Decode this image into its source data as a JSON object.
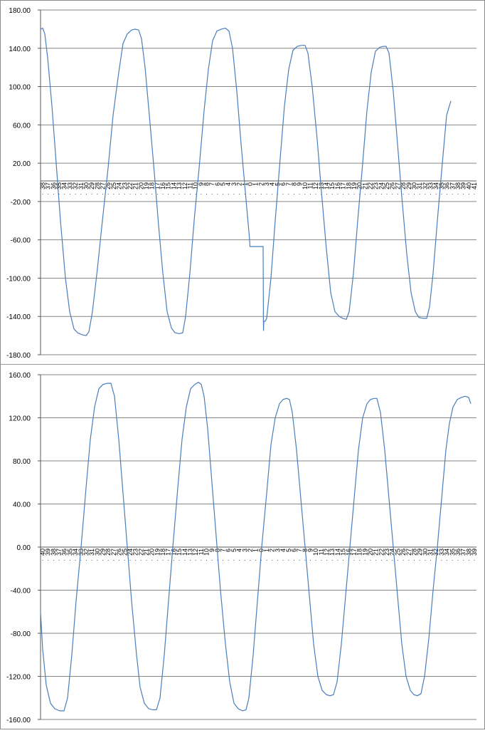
{
  "colors": {
    "series": "#4a7ebb",
    "grid": "#868686",
    "axis": "#595959",
    "text": "#000000"
  },
  "chart_data": [
    {
      "type": "line",
      "title": "",
      "xlabel": "",
      "ylabel": "",
      "ylim": [
        -180,
        180
      ],
      "y_ticks": [
        "180.00",
        "140.00",
        "100.00",
        "60.00",
        "20.00",
        "-20.00",
        "-60.00",
        "-100.00",
        "-140.00",
        "-180.00"
      ],
      "grid": true,
      "legend": "none",
      "x_tick_labels": [
        "38",
        "37",
        "36",
        "35",
        "34",
        "33",
        "32",
        "31",
        "30",
        "29",
        "28",
        "27",
        "26",
        "25",
        "24",
        "23",
        "22",
        "21",
        "20",
        "19",
        "18",
        "17",
        "16",
        "15",
        "14",
        "13",
        "12",
        "11",
        "10",
        "9",
        "8",
        "7",
        "6",
        "5",
        "4",
        "3",
        "2",
        "1",
        "0",
        "1",
        "2",
        "3",
        "4",
        "5",
        "6",
        "7",
        "8",
        "9",
        "10",
        "11",
        "12",
        "13",
        "14",
        "15",
        "16",
        "17",
        "18",
        "19",
        "20",
        "21",
        "22",
        "23",
        "24",
        "25",
        "26",
        "27",
        "28",
        "29",
        "30",
        "31",
        "32",
        "33",
        "34",
        "35",
        "36",
        "37",
        "38",
        "39",
        "40",
        "41"
      ],
      "series": [
        {
          "values": [
            [
              0,
              160
            ],
            [
              3,
              161
            ],
            [
              6,
              155
            ],
            [
              10,
              130
            ],
            [
              16,
              80
            ],
            [
              22,
              20
            ],
            [
              28,
              -40
            ],
            [
              35,
              -100
            ],
            [
              41,
              -135
            ],
            [
              47,
              -153
            ],
            [
              52,
              -157
            ],
            [
              58,
              -159
            ],
            [
              64,
              -160
            ],
            [
              68,
              -156
            ],
            [
              73,
              -135
            ],
            [
              80,
              -90
            ],
            [
              87,
              -40
            ],
            [
              95,
              15
            ],
            [
              102,
              70
            ],
            [
              110,
              115
            ],
            [
              116,
              145
            ],
            [
              122,
              155
            ],
            [
              128,
              159
            ],
            [
              133,
              160
            ],
            [
              138,
              159
            ],
            [
              142,
              150
            ],
            [
              147,
              120
            ],
            [
              153,
              70
            ],
            [
              160,
              10
            ],
            [
              166,
              -45
            ],
            [
              172,
              -95
            ],
            [
              178,
              -135
            ],
            [
              184,
              -152
            ],
            [
              189,
              -157
            ],
            [
              195,
              -158
            ],
            [
              200,
              -157
            ],
            [
              204,
              -140
            ],
            [
              210,
              -95
            ],
            [
              216,
              -40
            ],
            [
              223,
              15
            ],
            [
              230,
              75
            ],
            [
              236,
              118
            ],
            [
              242,
              148
            ],
            [
              248,
              158
            ],
            [
              254,
              160
            ],
            [
              260,
              161
            ],
            [
              265,
              158
            ],
            [
              270,
              140
            ],
            [
              276,
              95
            ],
            [
              282,
              40
            ],
            [
              288,
              -10
            ],
            [
              294,
              -60
            ],
            [
              294.5,
              -67
            ],
            [
              313,
              -67
            ],
            [
              313.5,
              -155
            ],
            [
              314,
              -145
            ],
            [
              316,
              -145
            ],
            [
              318,
              -142
            ],
            [
              324,
              -100
            ],
            [
              330,
              -40
            ],
            [
              337,
              25
            ],
            [
              343,
              80
            ],
            [
              349,
              118
            ],
            [
              355,
              138
            ],
            [
              361,
              142
            ],
            [
              367,
              143
            ],
            [
              372,
              143
            ],
            [
              376,
              135
            ],
            [
              382,
              100
            ],
            [
              389,
              45
            ],
            [
              395,
              -10
            ],
            [
              402,
              -70
            ],
            [
              408,
              -115
            ],
            [
              414,
              -135
            ],
            [
              420,
              -140
            ],
            [
              425,
              -142
            ],
            [
              430,
              -143
            ],
            [
              434,
              -135
            ],
            [
              440,
              -95
            ],
            [
              446,
              -40
            ],
            [
              453,
              20
            ],
            [
              459,
              75
            ],
            [
              465,
              115
            ],
            [
              471,
              137
            ],
            [
              477,
              141
            ],
            [
              482,
              142
            ],
            [
              486,
              142
            ],
            [
              490,
              135
            ],
            [
              496,
              95
            ],
            [
              502,
              40
            ],
            [
              508,
              -15
            ],
            [
              515,
              -75
            ],
            [
              521,
              -115
            ],
            [
              527,
              -135
            ],
            [
              532,
              -141
            ],
            [
              538,
              -142
            ],
            [
              543,
              -142
            ],
            [
              547,
              -130
            ],
            [
              552,
              -95
            ],
            [
              558,
              -40
            ],
            [
              565,
              20
            ],
            [
              571,
              70
            ],
            [
              577,
              85
            ]
          ]
        }
      ]
    },
    {
      "type": "line",
      "title": "",
      "xlabel": "",
      "ylabel": "",
      "ylim": [
        -160,
        160
      ],
      "y_ticks": [
        "160.00",
        "120.00",
        "80.00",
        "40.00",
        "0.00",
        "-40.00",
        "-80.00",
        "-120.00",
        "-160.00"
      ],
      "grid": true,
      "legend": "none",
      "x_tick_labels": [
        "40",
        "39",
        "38",
        "37",
        "36",
        "35",
        "34",
        "33",
        "32",
        "31",
        "30",
        "29",
        "28",
        "27",
        "26",
        "25",
        "24",
        "23",
        "22",
        "21",
        "20",
        "19",
        "18",
        "17",
        "16",
        "15",
        "14",
        "13",
        "12",
        "11",
        "10",
        "9",
        "8",
        "7",
        "6",
        "5",
        "4",
        "3",
        "2",
        "1",
        "0",
        "1",
        "2",
        "3",
        "4",
        "5",
        "6",
        "7",
        "8",
        "9",
        "10",
        "11",
        "12",
        "13",
        "14",
        "15",
        "16",
        "17",
        "18",
        "19",
        "20",
        "21",
        "22",
        "23",
        "24",
        "25",
        "26",
        "27",
        "28",
        "29",
        "30",
        "31",
        "32",
        "33",
        "34",
        "35",
        "36",
        "37",
        "38",
        "39"
      ],
      "series": [
        {
          "values": [
            [
              0,
              -60
            ],
            [
              3,
              -95
            ],
            [
              8,
              -128
            ],
            [
              14,
              -145
            ],
            [
              20,
              -150
            ],
            [
              27,
              -152
            ],
            [
              33,
              -152
            ],
            [
              38,
              -140
            ],
            [
              44,
              -100
            ],
            [
              50,
              -50
            ],
            [
              57,
              0
            ],
            [
              64,
              55
            ],
            [
              70,
              100
            ],
            [
              76,
              130
            ],
            [
              82,
              147
            ],
            [
              88,
              151
            ],
            [
              94,
              152
            ],
            [
              99,
              152
            ],
            [
              104,
              140
            ],
            [
              110,
              100
            ],
            [
              116,
              50
            ],
            [
              122,
              0
            ],
            [
              128,
              -50
            ],
            [
              135,
              -100
            ],
            [
              140,
              -130
            ],
            [
              146,
              -145
            ],
            [
              152,
              -150
            ],
            [
              158,
              -151
            ],
            [
              163,
              -151
            ],
            [
              168,
              -140
            ],
            [
              174,
              -100
            ],
            [
              180,
              -50
            ],
            [
              186,
              0
            ],
            [
              193,
              55
            ],
            [
              199,
              100
            ],
            [
              205,
              130
            ],
            [
              211,
              147
            ],
            [
              217,
              151
            ],
            [
              222,
              153
            ],
            [
              226,
              151
            ],
            [
              230,
              140
            ],
            [
              235,
              110
            ],
            [
              241,
              60
            ],
            [
              247,
              10
            ],
            [
              253,
              -40
            ],
            [
              260,
              -90
            ],
            [
              266,
              -125
            ],
            [
              272,
              -145
            ],
            [
              278,
              -150
            ],
            [
              284,
              -152
            ],
            [
              289,
              -151
            ],
            [
              293,
              -140
            ],
            [
              299,
              -100
            ],
            [
              305,
              -50
            ],
            [
              311,
              0
            ],
            [
              318,
              50
            ],
            [
              324,
              95
            ],
            [
              330,
              120
            ],
            [
              336,
              133
            ],
            [
              341,
              137
            ],
            [
              346,
              138
            ],
            [
              350,
              137
            ],
            [
              354,
              125
            ],
            [
              360,
              90
            ],
            [
              366,
              45
            ],
            [
              372,
              0
            ],
            [
              378,
              -45
            ],
            [
              384,
              -90
            ],
            [
              390,
              -120
            ],
            [
              396,
              -133
            ],
            [
              402,
              -137
            ],
            [
              407,
              -138
            ],
            [
              412,
              -137
            ],
            [
              417,
              -125
            ],
            [
              423,
              -90
            ],
            [
              429,
              -45
            ],
            [
              435,
              0
            ],
            [
              441,
              45
            ],
            [
              447,
              90
            ],
            [
              453,
              120
            ],
            [
              459,
              133
            ],
            [
              464,
              137
            ],
            [
              469,
              138
            ],
            [
              473,
              138
            ],
            [
              478,
              125
            ],
            [
              484,
              90
            ],
            [
              490,
              45
            ],
            [
              496,
              0
            ],
            [
              502,
              -45
            ],
            [
              508,
              -90
            ],
            [
              514,
              -120
            ],
            [
              520,
              -133
            ],
            [
              525,
              -137
            ],
            [
              530,
              -138
            ],
            [
              535,
              -136
            ],
            [
              540,
              -120
            ],
            [
              546,
              -85
            ],
            [
              552,
              -40
            ],
            [
              558,
              0
            ],
            [
              564,
              45
            ],
            [
              570,
              90
            ],
            [
              575,
              115
            ],
            [
              580,
              130
            ],
            [
              586,
              137
            ],
            [
              592,
              139
            ],
            [
              597,
              140
            ],
            [
              602,
              139
            ],
            [
              605,
              133
            ]
          ]
        }
      ]
    }
  ]
}
